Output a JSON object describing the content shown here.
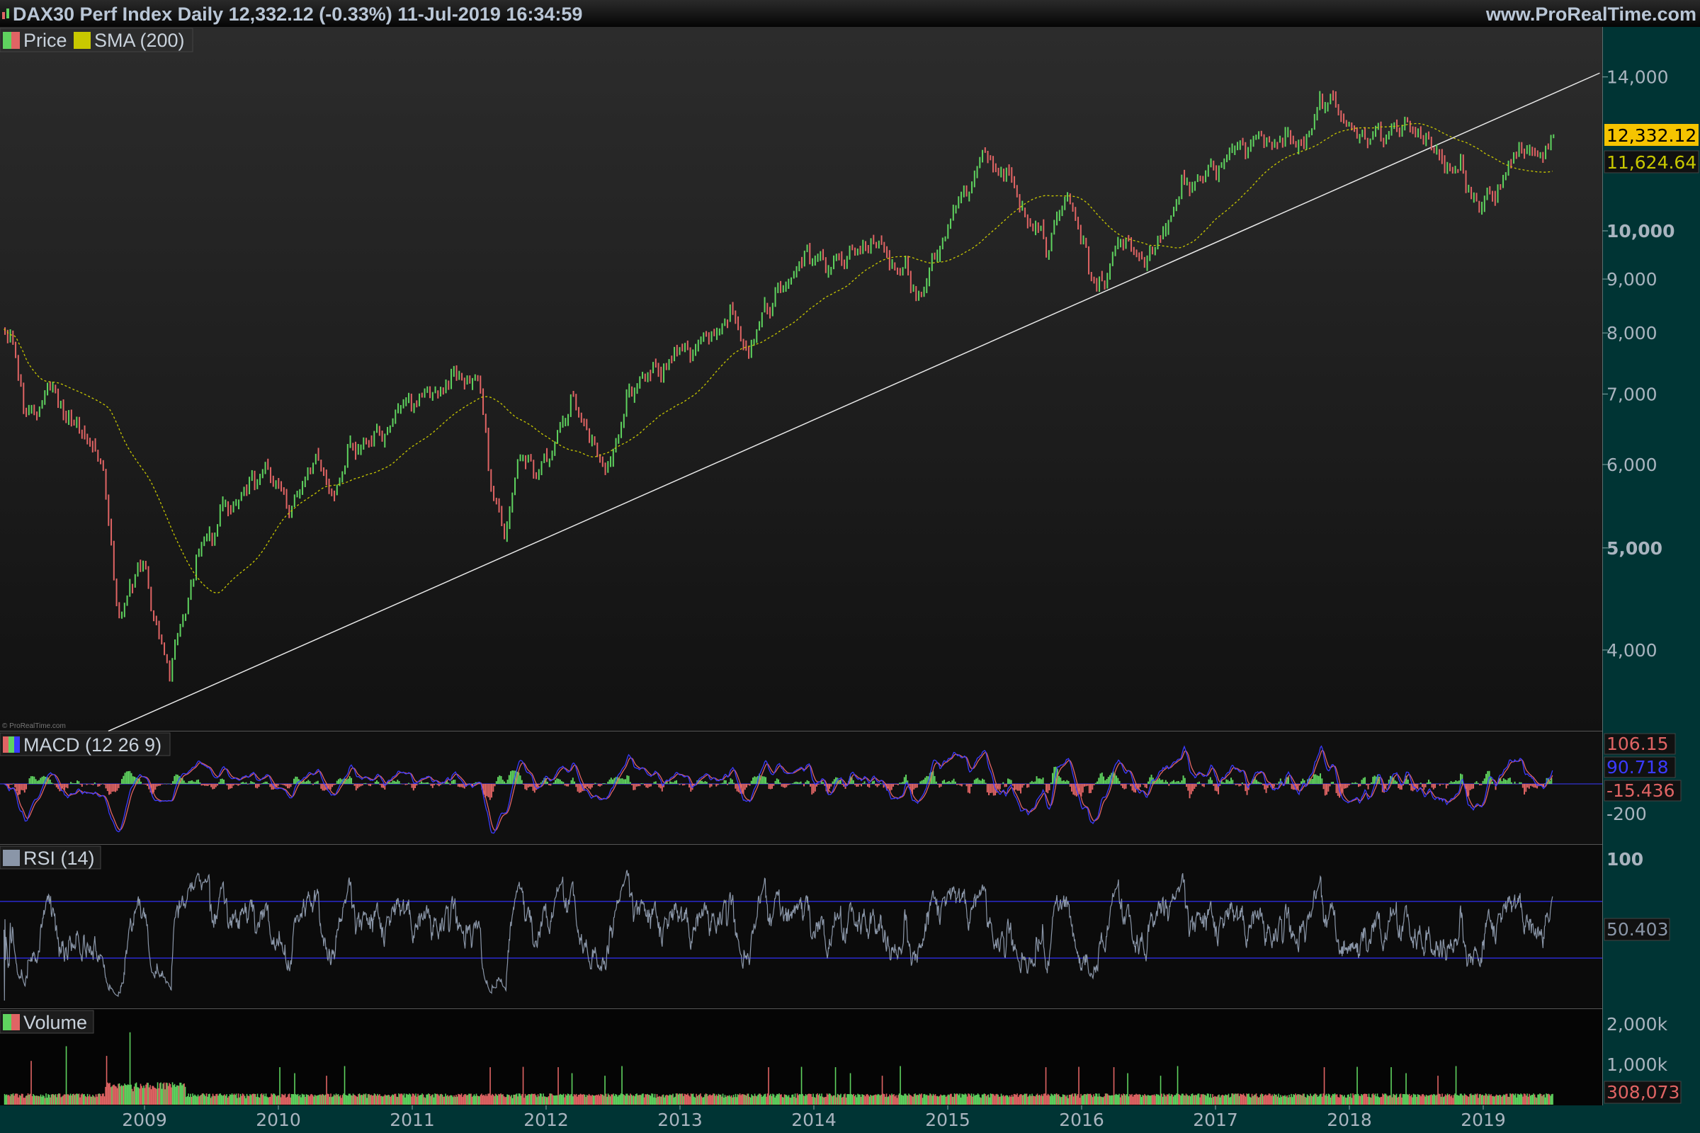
{
  "header": {
    "title": "DAX30 Perf Index Daily 12,332.12 (-0.33%) 11-Jul-2019 16:34:59",
    "site": "www.ProRealTime.com",
    "watermark": "© ProRealTime.com"
  },
  "colors": {
    "up": "#5fd35f",
    "down": "#e06464",
    "sma": "#c8c800",
    "macd_line": "#3a3aff",
    "macd_signal": "#e06464",
    "rsi_line": "#8a96a8",
    "rsi_bands": "#2a2ad0",
    "axis_bg": "#003434",
    "text": "#b9c6d6",
    "last_price_tag": "#f5c400"
  },
  "chart_data": [
    {
      "type": "candlestick",
      "panel": "price",
      "scale": "log",
      "legend": [
        "Price",
        "SMA (200)"
      ],
      "yticks": [
        {
          "v": 14000,
          "label": "14,000"
        },
        {
          "v": 10000,
          "label": "10,000",
          "bold": true
        },
        {
          "v": 9000,
          "label": "9,000"
        },
        {
          "v": 8000,
          "label": "8,000"
        },
        {
          "v": 7000,
          "label": "7,000"
        },
        {
          "v": 6000,
          "label": "6,000"
        },
        {
          "v": 5000,
          "label": "5,000",
          "bold": true
        },
        {
          "v": 4000,
          "label": "4,000"
        }
      ],
      "last_price": {
        "value": 12332.12,
        "label": "12,332.12"
      },
      "sma_last": {
        "value": 11624.64,
        "label": "11,624.64"
      },
      "approx_price_path": [
        [
          2007.95,
          8000
        ],
        [
          2008.0,
          8050
        ],
        [
          2008.1,
          6900
        ],
        [
          2008.2,
          6600
        ],
        [
          2008.35,
          7100
        ],
        [
          2008.45,
          6500
        ],
        [
          2008.6,
          6400
        ],
        [
          2008.72,
          5800
        ],
        [
          2008.8,
          4400
        ],
        [
          2008.9,
          4600
        ],
        [
          2009.0,
          4850
        ],
        [
          2009.12,
          4100
        ],
        [
          2009.2,
          3700
        ],
        [
          2009.27,
          4200
        ],
        [
          2009.4,
          5000
        ],
        [
          2009.5,
          5000
        ],
        [
          2009.6,
          5400
        ],
        [
          2009.75,
          5700
        ],
        [
          2009.95,
          6000
        ],
        [
          2010.1,
          5500
        ],
        [
          2010.3,
          6200
        ],
        [
          2010.4,
          5700
        ],
        [
          2010.6,
          6200
        ],
        [
          2010.8,
          6500
        ],
        [
          2011.0,
          7000
        ],
        [
          2011.3,
          7200
        ],
        [
          2011.5,
          7400
        ],
        [
          2011.58,
          5800
        ],
        [
          2011.7,
          5100
        ],
        [
          2011.8,
          6100
        ],
        [
          2011.95,
          5900
        ],
        [
          2012.2,
          7000
        ],
        [
          2012.45,
          6000
        ],
        [
          2012.7,
          7200
        ],
        [
          2013.0,
          7700
        ],
        [
          2013.4,
          8300
        ],
        [
          2013.5,
          7800
        ],
        [
          2013.95,
          9500
        ],
        [
          2014.1,
          9400
        ],
        [
          2014.5,
          9900
        ],
        [
          2014.65,
          9100
        ],
        [
          2014.8,
          8600
        ],
        [
          2014.95,
          9800
        ],
        [
          2015.28,
          12000
        ],
        [
          2015.5,
          11000
        ],
        [
          2015.68,
          10000
        ],
        [
          2015.75,
          9500
        ],
        [
          2015.9,
          10900
        ],
        [
          2016.05,
          9400
        ],
        [
          2016.12,
          8800
        ],
        [
          2016.3,
          10000
        ],
        [
          2016.48,
          9400
        ],
        [
          2016.7,
          10600
        ],
        [
          2016.95,
          11400
        ],
        [
          2017.3,
          12400
        ],
        [
          2017.6,
          12100
        ],
        [
          2017.85,
          13300
        ],
        [
          2018.1,
          12200
        ],
        [
          2018.4,
          12800
        ],
        [
          2018.6,
          12300
        ],
        [
          2018.8,
          11400
        ],
        [
          2018.98,
          10500
        ],
        [
          2019.2,
          11500
        ],
        [
          2019.32,
          12300
        ],
        [
          2019.42,
          11800
        ],
        [
          2019.52,
          12332.12
        ]
      ],
      "trendline": [
        [
          2008.73,
          3350
        ],
        [
          2019.87,
          14120
        ]
      ]
    },
    {
      "type": "line",
      "panel": "macd",
      "legend": "MACD (12 26 9)",
      "yticks": [
        {
          "v": -200,
          "label": "-200"
        }
      ],
      "tags": [
        {
          "label": "106.15",
          "color": "#e06464"
        },
        {
          "label": "90.718",
          "color": "#3a3aff"
        },
        {
          "label": "-15.436",
          "color": "#e06464"
        }
      ]
    },
    {
      "type": "line",
      "panel": "rsi",
      "legend": "RSI (14)",
      "yticks": [
        {
          "v": 100,
          "label": "100",
          "bold": true
        }
      ],
      "bands": [
        30,
        70
      ],
      "last": {
        "value": 50.403,
        "label": "50.403"
      }
    },
    {
      "type": "bar",
      "panel": "volume",
      "legend": "Volume",
      "yticks": [
        {
          "v": 2000000,
          "label": "2,000k"
        },
        {
          "v": 1000000,
          "label": "1,000k"
        }
      ],
      "last": {
        "value": 308073,
        "label": "308,073"
      }
    }
  ],
  "xaxis": {
    "ticks": [
      {
        "v": 2009,
        "label": "2009"
      },
      {
        "v": 2010,
        "label": "2010"
      },
      {
        "v": 2011,
        "label": "2011"
      },
      {
        "v": 2012,
        "label": "2012"
      },
      {
        "v": 2013,
        "label": "2013"
      },
      {
        "v": 2014,
        "label": "2014"
      },
      {
        "v": 2015,
        "label": "2015"
      },
      {
        "v": 2016,
        "label": "2016"
      },
      {
        "v": 2017,
        "label": "2017"
      },
      {
        "v": 2018,
        "label": "2018"
      },
      {
        "v": 2019,
        "label": "2019"
      }
    ]
  }
}
